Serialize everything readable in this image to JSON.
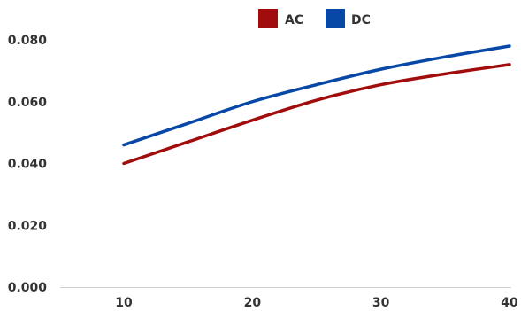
{
  "chart_data": {
    "type": "line",
    "x": [
      10,
      15,
      20,
      25,
      30,
      35,
      40
    ],
    "series": [
      {
        "name": "AC",
        "color": "#a10c0c",
        "values": [
          0.04,
          0.047,
          0.054,
          0.0605,
          0.0655,
          0.069,
          0.072
        ]
      },
      {
        "name": "DC",
        "color": "#0747a6",
        "values": [
          0.046,
          0.053,
          0.06,
          0.0655,
          0.0705,
          0.0745,
          0.078
        ]
      }
    ],
    "xticks": [
      "10",
      "20",
      "30",
      "40"
    ],
    "xtick_values": [
      10,
      20,
      30,
      40
    ],
    "yticks": [
      "0.000",
      "0.020",
      "0.040",
      "0.060",
      "0.080"
    ],
    "ytick_values": [
      0,
      0.02,
      0.04,
      0.06,
      0.08
    ],
    "xlim": [
      10,
      40
    ],
    "ylim": [
      0,
      0.08
    ],
    "grid": false,
    "legend_position": "top-center"
  }
}
